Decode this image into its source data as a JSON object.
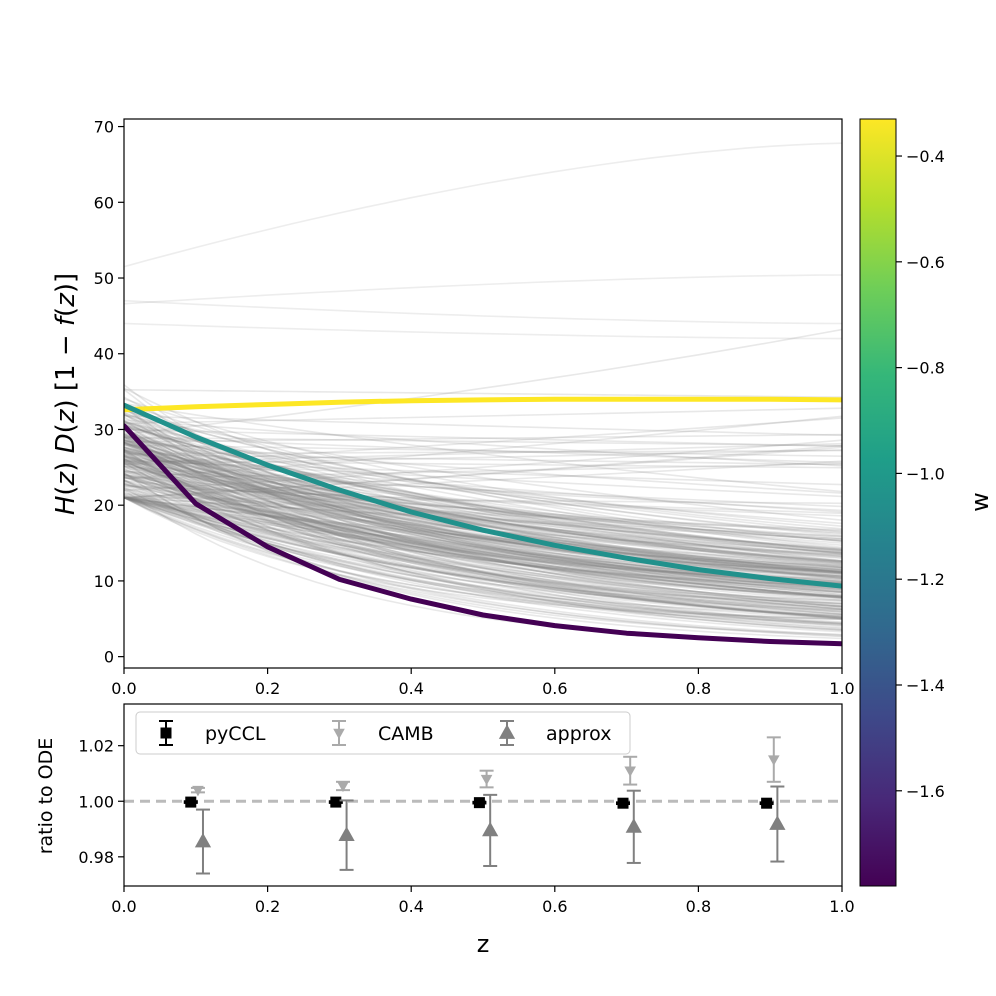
{
  "chart_data": [
    {
      "type": "line",
      "panel": "top",
      "ylabel": "H(z) D(z) [1 − f(z)]",
      "xlim": [
        0,
        1.0
      ],
      "ylim": [
        -1.5,
        71
      ],
      "x_ticks": [
        "0.0",
        "0.2",
        "0.4",
        "0.6",
        "0.8",
        "1.0"
      ],
      "y_ticks": [
        "0",
        "10",
        "20",
        "30",
        "40",
        "50",
        "60",
        "70"
      ],
      "y_tick_values": [
        0,
        10,
        20,
        30,
        40,
        50,
        60,
        70
      ],
      "background_curves": {
        "color": "#808080",
        "description": "ensemble of gray samples",
        "count": 260,
        "start_range": [
          21,
          52
        ],
        "end_range": [
          1,
          68
        ]
      },
      "series": [
        {
          "name": "w = -0.35",
          "color": "#fde725",
          "x": [
            0,
            0.1,
            0.2,
            0.3,
            0.4,
            0.5,
            0.6,
            0.7,
            0.8,
            0.9,
            1.0
          ],
          "y": [
            32.6,
            33.0,
            33.3,
            33.6,
            33.8,
            33.9,
            34.0,
            34.0,
            34.0,
            34.0,
            33.9
          ]
        },
        {
          "name": "w = -1.0",
          "color": "#21918c",
          "x": [
            0,
            0.1,
            0.2,
            0.3,
            0.4,
            0.5,
            0.6,
            0.7,
            0.8,
            0.9,
            1.0
          ],
          "y": [
            33.2,
            29.0,
            25.3,
            22.0,
            19.1,
            16.7,
            14.7,
            13.0,
            11.5,
            10.3,
            9.3
          ]
        },
        {
          "name": "w = -1.75",
          "color": "#440154",
          "x": [
            0,
            0.1,
            0.2,
            0.3,
            0.4,
            0.5,
            0.6,
            0.7,
            0.8,
            0.9,
            1.0
          ],
          "y": [
            30.5,
            20.2,
            14.5,
            10.2,
            7.6,
            5.5,
            4.1,
            3.1,
            2.5,
            2.0,
            1.7
          ]
        }
      ]
    },
    {
      "type": "scatter",
      "panel": "bottom",
      "xlabel": "z",
      "ylabel": "ratio to ODE",
      "xlim": [
        0,
        1.0
      ],
      "ylim": [
        0.9695,
        1.035
      ],
      "x_ticks": [
        "0.0",
        "0.2",
        "0.4",
        "0.6",
        "0.8",
        "1.0"
      ],
      "y_ticks": [
        "0.98",
        "1.00",
        "1.02"
      ],
      "y_tick_values": [
        0.98,
        1.0,
        1.02
      ],
      "reference_line": 1.0,
      "legend": [
        "pyCCL",
        "CAMB",
        "approx"
      ],
      "series": [
        {
          "name": "pyCCL",
          "color": "#000000",
          "marker": "square",
          "x": [
            0.093,
            0.295,
            0.495,
            0.695,
            0.895
          ],
          "y": [
            0.9997,
            0.9997,
            0.9995,
            0.9993,
            0.9993
          ],
          "err": [
            0.0003,
            0.0003,
            0.0003,
            0.0003,
            0.0003
          ]
        },
        {
          "name": "CAMB",
          "color": "#aaaaaa",
          "marker": "triangle-down",
          "x": [
            0.103,
            0.305,
            0.505,
            0.705,
            0.905
          ],
          "y": [
            1.004,
            1.0055,
            1.008,
            1.011,
            1.015
          ],
          "err": [
            0.0008,
            0.0015,
            0.003,
            0.005,
            0.008
          ]
        },
        {
          "name": "approx",
          "color": "#808080",
          "marker": "triangle-up",
          "x": [
            0.11,
            0.31,
            0.51,
            0.71,
            0.91
          ],
          "y": [
            0.9855,
            0.9878,
            0.9895,
            0.9908,
            0.9918
          ],
          "err": [
            0.0115,
            0.0125,
            0.0128,
            0.013,
            0.0135
          ]
        }
      ]
    },
    {
      "type": "colorbar",
      "label": "w",
      "range": [
        -1.78,
        -0.33
      ],
      "ticks": [
        "−0.4",
        "−0.6",
        "−0.8",
        "−1.0",
        "−1.2",
        "−1.4",
        "−1.6"
      ],
      "tick_values": [
        -0.4,
        -0.6,
        -0.8,
        -1.0,
        -1.2,
        -1.4,
        -1.6
      ],
      "colormap": [
        "#440154",
        "#482878",
        "#3e4989",
        "#31688e",
        "#26828e",
        "#1f9e89",
        "#35b779",
        "#6ece58",
        "#b5de2b",
        "#fde725"
      ]
    }
  ]
}
